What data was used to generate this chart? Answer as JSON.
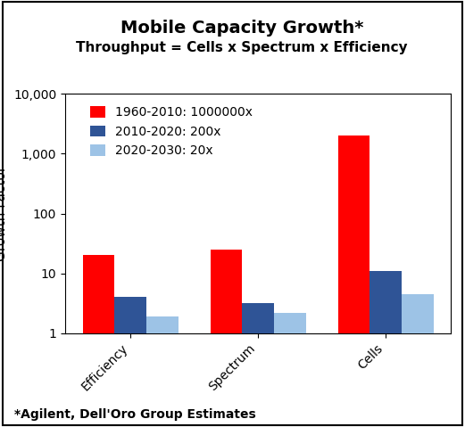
{
  "title": "Mobile Capacity Growth*",
  "subtitle": "Throughput = Cells x Spectrum x Efficiency",
  "ylabel": "Growth Factor",
  "footer": "*Agilent, Dell'Oro Group Estimates",
  "categories": [
    "Efficiency",
    "Spectrum",
    "Cells"
  ],
  "series": [
    {
      "label": "1960-2010: 1000000x",
      "color": "#FF0000",
      "values": [
        20,
        25,
        2000
      ]
    },
    {
      "label": "2010-2020: 200x",
      "color": "#2F5496",
      "values": [
        4.0,
        3.2,
        11
      ]
    },
    {
      "label": "2020-2030: 20x",
      "color": "#9DC3E6",
      "values": [
        1.9,
        2.2,
        4.5
      ]
    }
  ],
  "ylim": [
    1,
    10000
  ],
  "yticks": [
    1,
    10,
    100,
    1000,
    10000
  ],
  "ytick_labels": [
    "1",
    "10",
    "100",
    "1,000",
    "10,000"
  ],
  "bar_width": 0.25,
  "title_fontsize": 14,
  "subtitle_fontsize": 11,
  "axis_fontsize": 11,
  "legend_fontsize": 10,
  "tick_fontsize": 10,
  "footer_fontsize": 10,
  "border_color": "#000000",
  "background_color": "#FFFFFF"
}
